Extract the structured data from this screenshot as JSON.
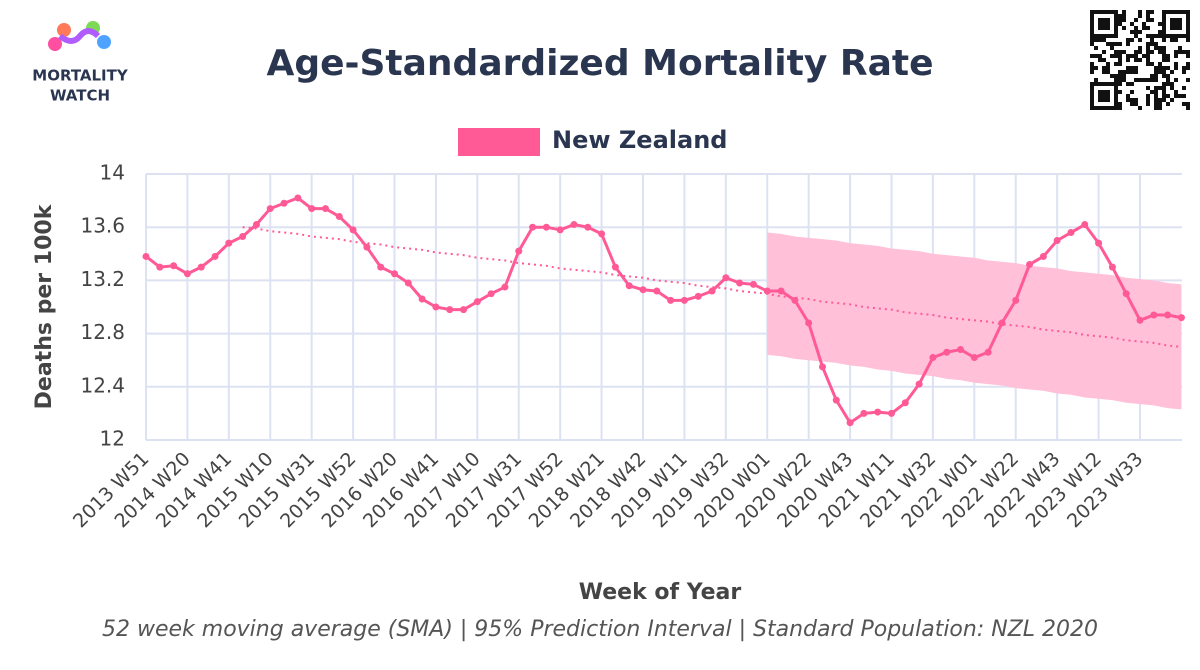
{
  "logo": {
    "line1": "MORTALITY",
    "line2": "WATCH"
  },
  "chart_data": {
    "type": "line",
    "title": "Age-Standardized Mortality Rate",
    "xlabel": "Week of Year",
    "ylabel": "Deaths per 100k",
    "footnote": "52 week moving average (SMA) | 95% Prediction Interval | Standard Population: NZL 2020",
    "ylim": [
      12,
      14
    ],
    "yticks": [
      12,
      12.4,
      12.8,
      13.2,
      13.6,
      14
    ],
    "grid": true,
    "categories": [
      "2013 W51",
      null,
      null,
      "2014 W20",
      null,
      null,
      "2014 W41",
      null,
      null,
      "2015 W10",
      null,
      null,
      "2015 W31",
      null,
      null,
      "2015 W52",
      null,
      null,
      "2016 W20",
      null,
      null,
      "2016 W41",
      null,
      null,
      "2017 W10",
      null,
      null,
      "2017 W31",
      null,
      null,
      "2017 W52",
      null,
      null,
      "2018 W21",
      null,
      null,
      "2018 W42",
      null,
      null,
      "2019 W11",
      null,
      null,
      "2019 W32",
      null,
      null,
      "2020 W01",
      null,
      null,
      "2020 W22",
      null,
      null,
      "2020 W43",
      null,
      null,
      "2021 W11",
      null,
      null,
      "2021 W32",
      null,
      null,
      "2022 W01",
      null,
      null,
      "2022 W22",
      null,
      null,
      "2022 W43",
      null,
      null,
      "2023 W12",
      null,
      null,
      "2023 W33",
      null,
      null,
      null
    ],
    "series": [
      {
        "name": "New Zealand",
        "color": "#ff5a96",
        "values": [
          13.38,
          13.3,
          13.31,
          13.25,
          13.3,
          13.38,
          13.48,
          13.53,
          13.62,
          13.74,
          13.78,
          13.82,
          13.74,
          13.74,
          13.68,
          13.58,
          13.45,
          13.3,
          13.25,
          13.18,
          13.06,
          13.0,
          12.98,
          12.98,
          13.04,
          13.1,
          13.15,
          13.42,
          13.6,
          13.6,
          13.58,
          13.62,
          13.6,
          13.55,
          13.3,
          13.16,
          13.13,
          13.12,
          13.05,
          13.05,
          13.08,
          13.12,
          13.22,
          13.18,
          13.17,
          13.12,
          13.12,
          13.05,
          12.88,
          12.55,
          12.3,
          12.13,
          12.2,
          12.21,
          12.2,
          12.28,
          12.42,
          12.62,
          12.66,
          12.68,
          12.62,
          12.66,
          12.88,
          13.05,
          13.32,
          13.38,
          13.5,
          13.56,
          13.62,
          13.48,
          13.3,
          13.1,
          12.9,
          12.94,
          12.94,
          12.92
        ],
        "trend_values": [
          null,
          null,
          null,
          null,
          null,
          null,
          null,
          13.6,
          13.59,
          13.57,
          13.56,
          13.55,
          13.53,
          13.52,
          13.51,
          13.49,
          13.48,
          13.47,
          13.45,
          13.44,
          13.43,
          13.41,
          13.4,
          13.39,
          13.37,
          13.36,
          13.35,
          13.33,
          13.32,
          13.31,
          13.29,
          13.28,
          13.27,
          13.26,
          13.24,
          13.23,
          13.22,
          13.2,
          13.19,
          13.18,
          13.16,
          13.15,
          13.14,
          13.12,
          13.11,
          13.1,
          13.08,
          13.07,
          13.06,
          13.04,
          13.03,
          13.02,
          13.0,
          12.99,
          12.98,
          12.96,
          12.95,
          12.94,
          12.92,
          12.91,
          12.9,
          12.89,
          12.87,
          12.86,
          12.85,
          12.83,
          12.82,
          12.81,
          12.79,
          12.78,
          12.77,
          12.75,
          12.74,
          12.73,
          12.71,
          12.7
        ],
        "pi_upper": [
          null,
          null,
          null,
          null,
          null,
          null,
          null,
          null,
          null,
          null,
          null,
          null,
          null,
          null,
          null,
          null,
          null,
          null,
          null,
          null,
          null,
          null,
          null,
          null,
          null,
          null,
          null,
          null,
          null,
          null,
          null,
          null,
          null,
          null,
          null,
          null,
          null,
          null,
          null,
          null,
          null,
          null,
          null,
          null,
          null,
          13.56,
          13.55,
          13.53,
          13.52,
          13.51,
          13.5,
          13.48,
          13.47,
          13.46,
          13.44,
          13.43,
          13.42,
          13.4,
          13.39,
          13.38,
          13.37,
          13.35,
          13.34,
          13.33,
          13.31,
          13.3,
          13.29,
          13.27,
          13.26,
          13.25,
          13.24,
          13.22,
          13.21,
          13.2,
          13.18,
          13.17
        ],
        "pi_lower": [
          null,
          null,
          null,
          null,
          null,
          null,
          null,
          null,
          null,
          null,
          null,
          null,
          null,
          null,
          null,
          null,
          null,
          null,
          null,
          null,
          null,
          null,
          null,
          null,
          null,
          null,
          null,
          null,
          null,
          null,
          null,
          null,
          null,
          null,
          null,
          null,
          null,
          null,
          null,
          null,
          null,
          null,
          null,
          null,
          null,
          12.64,
          12.63,
          12.61,
          12.6,
          12.59,
          12.58,
          12.56,
          12.55,
          12.53,
          12.52,
          12.5,
          12.49,
          12.48,
          12.46,
          12.45,
          12.43,
          12.42,
          12.41,
          12.39,
          12.38,
          12.37,
          12.35,
          12.34,
          12.32,
          12.31,
          12.3,
          12.28,
          12.27,
          12.26,
          12.24,
          12.23
        ],
        "pi_color": "#ffc0d8"
      }
    ]
  }
}
